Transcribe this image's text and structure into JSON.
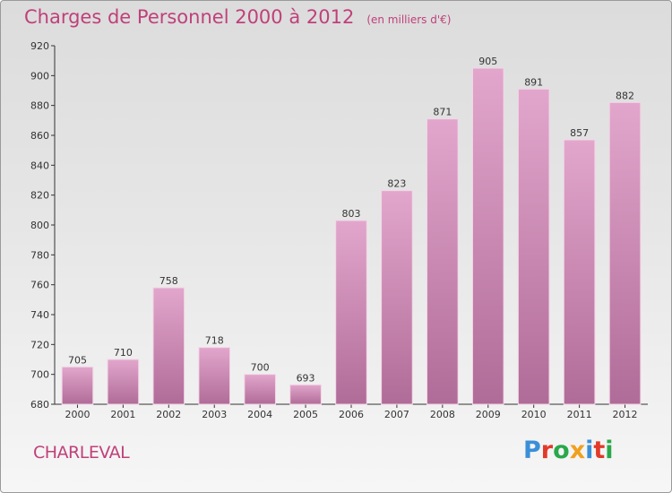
{
  "header": {
    "title": "Charges de Personnel 2000 à 2012",
    "subtitle": "(en milliers d'€)"
  },
  "footer": {
    "commune": "CHARLEVAL",
    "logo_letters": [
      "P",
      "r",
      "o",
      "x",
      "i",
      "t",
      "i"
    ],
    "logo_colors": [
      "#3a8fd8",
      "#e23a2a",
      "#2aa84a",
      "#f0a020",
      "#3a8fd8",
      "#e23a2a",
      "#2aa84a"
    ]
  },
  "colors": {
    "bar_top": "#e2a6cc",
    "bar_bottom": "#b06c98",
    "accent": "#c0407a"
  },
  "chart_data": {
    "type": "bar",
    "categories": [
      "2000",
      "2001",
      "2002",
      "2003",
      "2004",
      "2005",
      "2006",
      "2007",
      "2008",
      "2009",
      "2010",
      "2011",
      "2012"
    ],
    "values": [
      705,
      710,
      758,
      718,
      700,
      693,
      803,
      823,
      871,
      905,
      891,
      857,
      882
    ],
    "ylim": [
      680,
      920
    ],
    "yticks": [
      680,
      700,
      720,
      740,
      760,
      780,
      800,
      820,
      840,
      860,
      880,
      900,
      920
    ],
    "grid": false,
    "data_labels": true
  }
}
